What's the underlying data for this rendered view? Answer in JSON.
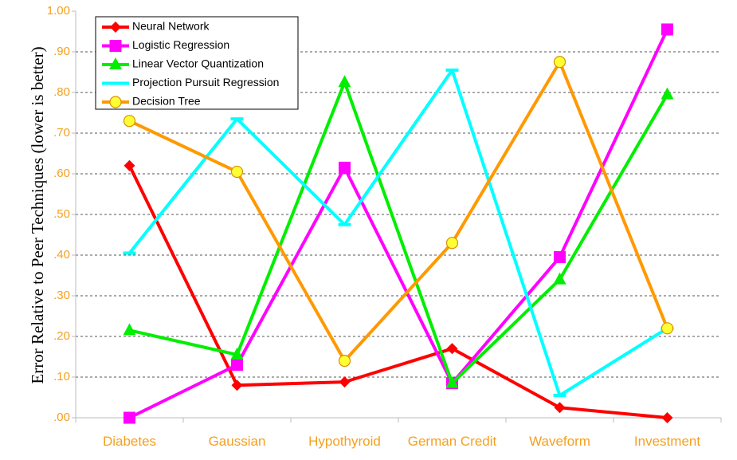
{
  "chart_data": {
    "type": "line",
    "title": "",
    "xlabel": "",
    "ylabel": "Error Relative to Peer Techniques (lower is better)",
    "categories": [
      "Diabetes",
      "Gaussian",
      "Hypothyroid",
      "German Credit",
      "Waveform",
      "Investment"
    ],
    "y_tick_labels": [
      ".00",
      ".10",
      ".20",
      ".30",
      ".40",
      ".50",
      ".60",
      ".70",
      ".80",
      ".90",
      "1.00"
    ],
    "ylim": [
      0,
      1
    ],
    "grid": true,
    "legend_position": "top-left",
    "tick_color": "#f4a020",
    "series": [
      {
        "name": "Neural Network",
        "color": "#ff0000",
        "marker": "diamond",
        "values": [
          0.62,
          0.08,
          0.088,
          0.17,
          0.025,
          0.0
        ]
      },
      {
        "name": "Logistic Regression",
        "color": "#ff00ff",
        "marker": "square",
        "values": [
          0.0,
          0.13,
          0.615,
          0.085,
          0.395,
          0.955
        ]
      },
      {
        "name": "Linear Vector Quantization",
        "color": "#00ee00",
        "marker": "triangle",
        "values": [
          0.215,
          0.155,
          0.825,
          0.085,
          0.34,
          0.795
        ]
      },
      {
        "name": "Projection Pursuit Regression",
        "color": "#00ffff",
        "marker": "bar",
        "values": [
          0.405,
          0.735,
          0.475,
          0.855,
          0.055,
          0.22
        ]
      },
      {
        "name": "Decision Tree",
        "color": "#ff9900",
        "marker": "circle",
        "values": [
          0.73,
          0.605,
          0.14,
          0.43,
          0.875,
          0.22
        ]
      }
    ]
  }
}
